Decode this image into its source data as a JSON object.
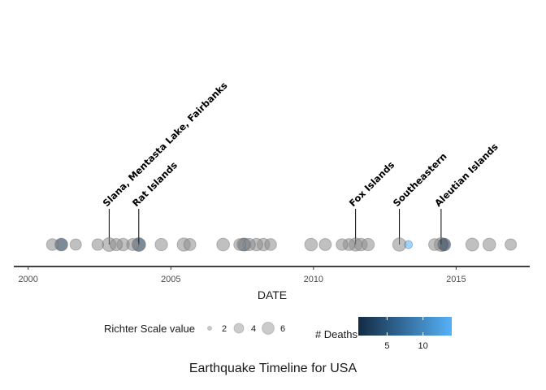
{
  "chart_data": {
    "type": "scatter",
    "title": "Earthquake Timeline for USA",
    "xlabel": "DATE",
    "ylabel": "",
    "xlim": [
      "1999-07-01",
      "2017-08-01"
    ],
    "x_ticks": [
      "2000",
      "2005",
      "2010",
      "2015"
    ],
    "grid": false,
    "legend_position": "bottom",
    "size_legend": {
      "title": "Richter Scale value",
      "values": [
        2,
        4,
        6
      ],
      "labels": [
        "2",
        "4",
        "6"
      ]
    },
    "color_legend": {
      "title": "# Deaths",
      "range": [
        1,
        14
      ],
      "ticks": [
        5,
        10
      ],
      "labels": [
        "5",
        "10"
      ],
      "low_color": "#132B43",
      "high_color": "#56B1F7",
      "na_color": "#8c8c8c"
    },
    "points": [
      {
        "date": "2000-11-06",
        "magnitude": 5.7,
        "deaths": null
      },
      {
        "date": "2001-02-28",
        "magnitude": 6.8,
        "deaths": 1
      },
      {
        "date": "2001-09-01",
        "magnitude": 5.3,
        "deaths": null
      },
      {
        "date": "2002-06-10",
        "magnitude": 5.6,
        "deaths": null
      },
      {
        "date": "2002-11-03",
        "magnitude": 7.9,
        "deaths": null
      },
      {
        "date": "2003-02-01",
        "magnitude": 6.2,
        "deaths": null
      },
      {
        "date": "2003-05-01",
        "magnitude": 6.5,
        "deaths": null
      },
      {
        "date": "2003-09-01",
        "magnitude": 6.0,
        "deaths": null
      },
      {
        "date": "2003-11-17",
        "magnitude": 7.8,
        "deaths": 1
      },
      {
        "date": "2004-09-01",
        "magnitude": 6.4,
        "deaths": null
      },
      {
        "date": "2005-06-15",
        "magnitude": 7.2,
        "deaths": null
      },
      {
        "date": "2005-09-01",
        "magnitude": 6.0,
        "deaths": null
      },
      {
        "date": "2006-11-01",
        "magnitude": 6.7,
        "deaths": null
      },
      {
        "date": "2007-06-01",
        "magnitude": 5.7,
        "deaths": null
      },
      {
        "date": "2007-07-16",
        "magnitude": 6.6,
        "deaths": null
      },
      {
        "date": "2007-08-01",
        "magnitude": 6.9,
        "deaths": 5
      },
      {
        "date": "2007-10-01",
        "magnitude": 6.3,
        "deaths": null
      },
      {
        "date": "2008-01-01",
        "magnitude": 6.5,
        "deaths": null
      },
      {
        "date": "2008-04-01",
        "magnitude": 6.6,
        "deaths": null
      },
      {
        "date": "2008-07-01",
        "magnitude": 5.8,
        "deaths": null
      },
      {
        "date": "2009-12-01",
        "magnitude": 6.5,
        "deaths": null
      },
      {
        "date": "2010-06-01",
        "magnitude": 6.0,
        "deaths": null
      },
      {
        "date": "2011-01-01",
        "magnitude": 5.6,
        "deaths": null
      },
      {
        "date": "2011-04-01",
        "magnitude": 5.9,
        "deaths": null
      },
      {
        "date": "2011-06-24",
        "magnitude": 7.3,
        "deaths": null
      },
      {
        "date": "2011-09-01",
        "magnitude": 6.6,
        "deaths": null
      },
      {
        "date": "2011-12-01",
        "magnitude": 6.4,
        "deaths": null
      },
      {
        "date": "2013-01-05",
        "magnitude": 7.5,
        "deaths": null
      },
      {
        "date": "2013-05-01",
        "magnitude": 3.0,
        "deaths": 14
      },
      {
        "date": "2014-04-01",
        "magnitude": 5.9,
        "deaths": null
      },
      {
        "date": "2014-06-23",
        "magnitude": 7.9,
        "deaths": null
      },
      {
        "date": "2014-08-01",
        "magnitude": 6.9,
        "deaths": 1
      },
      {
        "date": "2015-07-27",
        "magnitude": 6.9,
        "deaths": null
      },
      {
        "date": "2016-03-01",
        "magnitude": 6.8,
        "deaths": null
      },
      {
        "date": "2016-12-01",
        "magnitude": 5.4,
        "deaths": null
      }
    ],
    "annotations": [
      {
        "date": "2002-11-03",
        "label": "Slana, Mentasta Lake, Fairbanks",
        "height": 1
      },
      {
        "date": "2003-11-17",
        "label": "Rat Islands",
        "height": 0.6
      },
      {
        "date": "2011-06-24",
        "label": "Fox Islands",
        "height": 0.6
      },
      {
        "date": "2013-01-05",
        "label": "Southeastern",
        "height": 0.6
      },
      {
        "date": "2014-06-23",
        "label": "Aleutian Islands",
        "height": 0.6
      }
    ]
  }
}
